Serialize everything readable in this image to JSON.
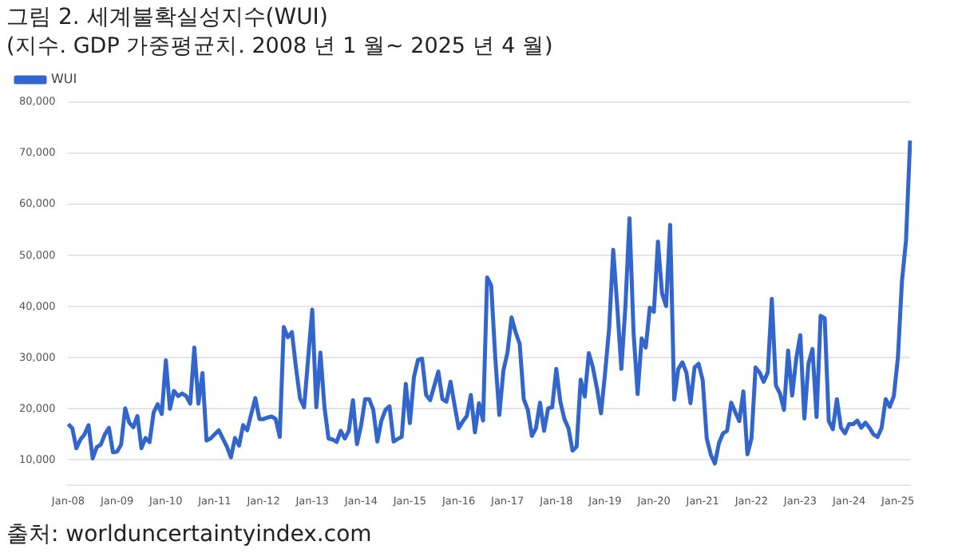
{
  "chart_data": {
    "type": "line",
    "title": "그림 2. 세계불확실성지수(WUI)",
    "subtitle": "(지수. GDP 가중평균치. 2008 년 1 월~ 2025 년 4 월)",
    "annotations": [
      "출처: worlduncertaintyindex.com"
    ],
    "categories": [
      "Jan-08",
      null,
      null,
      null,
      null,
      null,
      null,
      null,
      null,
      null,
      null,
      null,
      "Jan-09",
      null,
      null,
      null,
      null,
      null,
      null,
      null,
      null,
      null,
      null,
      null,
      "Jan-10",
      null,
      null,
      null,
      null,
      null,
      null,
      null,
      null,
      null,
      null,
      null,
      "Jan-11",
      null,
      null,
      null,
      null,
      null,
      null,
      null,
      null,
      null,
      null,
      null,
      "Jan-12",
      null,
      null,
      null,
      null,
      null,
      null,
      null,
      null,
      null,
      null,
      null,
      "Jan-13",
      null,
      null,
      null,
      null,
      null,
      null,
      null,
      null,
      null,
      null,
      null,
      "Jan-14",
      null,
      null,
      null,
      null,
      null,
      null,
      null,
      null,
      null,
      null,
      null,
      "Jan-15",
      null,
      null,
      null,
      null,
      null,
      null,
      null,
      null,
      null,
      null,
      null,
      "Jan-16",
      null,
      null,
      null,
      null,
      null,
      null,
      null,
      null,
      null,
      null,
      null,
      "Jan-17",
      null,
      null,
      null,
      null,
      null,
      null,
      null,
      null,
      null,
      null,
      null,
      "Jan-18",
      null,
      null,
      null,
      null,
      null,
      null,
      null,
      null,
      null,
      null,
      null,
      "Jan-19",
      null,
      null,
      null,
      null,
      null,
      null,
      null,
      null,
      null,
      null,
      null,
      "Jan-20",
      null,
      null,
      null,
      null,
      null,
      null,
      null,
      null,
      null,
      null,
      null,
      "Jan-21",
      null,
      null,
      null,
      null,
      null,
      null,
      null,
      null,
      null,
      null,
      null,
      "Jan-22",
      null,
      null,
      null,
      null,
      null,
      null,
      null,
      null,
      null,
      null,
      null,
      "Jan-23",
      null,
      null,
      null,
      null,
      null,
      null,
      null,
      null,
      null,
      null,
      null,
      "Jan-24",
      null,
      null,
      null,
      null,
      null,
      null,
      null,
      null,
      null,
      null,
      null,
      "Jan-25",
      null,
      null,
      null
    ],
    "series": [
      {
        "name": "WUI",
        "color": "#3366cc",
        "values": [
          17000,
          16200,
          12300,
          14000,
          15000,
          16800,
          10300,
          12500,
          13000,
          15000,
          16300,
          11500,
          11600,
          13000,
          20100,
          17300,
          16400,
          18600,
          12300,
          14300,
          13500,
          19300,
          20900,
          19000,
          29500,
          20000,
          23500,
          22500,
          23000,
          22500,
          21000,
          32000,
          21000,
          27000,
          13800,
          14200,
          15000,
          15800,
          14200,
          12600,
          10500,
          14300,
          12800,
          16800,
          15800,
          19000,
          22100,
          18000,
          18000,
          18300,
          18500,
          18000,
          14500,
          36000,
          34000,
          35000,
          28000,
          22000,
          20300,
          30000,
          39400,
          20300,
          31000,
          20300,
          14200,
          14000,
          13500,
          15700,
          14200,
          15700,
          21700,
          13100,
          16700,
          21900,
          21900,
          19800,
          13600,
          17700,
          19800,
          20500,
          13600,
          14100,
          14500,
          24900,
          17200,
          26200,
          29600,
          29800,
          22700,
          21700,
          24500,
          27300,
          21900,
          21400,
          25300,
          20700,
          16200,
          17500,
          18600,
          22700,
          15400,
          21100,
          17700,
          45700,
          44100,
          30000,
          18800,
          27500,
          31000,
          37900,
          35000,
          32700,
          21900,
          19800,
          14700,
          16200,
          21200,
          15700,
          20100,
          20300,
          27800,
          21400,
          18000,
          16200,
          11800,
          12600,
          25700,
          22400,
          30900,
          28100,
          24000,
          19100,
          27000,
          35800,
          51100,
          40000,
          27800,
          40000,
          57300,
          35000,
          22900,
          33800,
          32000,
          39800,
          39000,
          52700,
          42600,
          40100,
          56000,
          21800,
          27800,
          29100,
          27100,
          21100,
          28100,
          28800,
          25600,
          14200,
          11000,
          9300,
          13300,
          15200,
          15700,
          21200,
          19400,
          17600,
          23400,
          11100,
          14200,
          28100,
          27100,
          25300,
          27100,
          41500,
          24600,
          23000,
          19800,
          31400,
          22600,
          29800,
          34400,
          18100,
          28800,
          31700,
          18400,
          38200,
          37700,
          17600,
          16000,
          21900,
          16300,
          15200,
          17000,
          17000,
          17700,
          16300,
          17300,
          16300,
          15000,
          14500,
          16300,
          21900,
          20400,
          22500,
          30000,
          45000,
          53000,
          72500
        ]
      }
    ],
    "ylim": [
      5000,
      80000
    ],
    "yticks": [
      {
        "value": 10000,
        "label": "10,000"
      },
      {
        "value": 20000,
        "label": "20,000"
      },
      {
        "value": 30000,
        "label": "30,000"
      },
      {
        "value": 40000,
        "label": "40,000"
      },
      {
        "value": 50000,
        "label": "50,000"
      },
      {
        "value": 60000,
        "label": "60,000"
      },
      {
        "value": 70000,
        "label": "70,000"
      },
      {
        "value": 80000,
        "label": "80,000"
      }
    ],
    "grid": "y",
    "legend": "top left"
  }
}
